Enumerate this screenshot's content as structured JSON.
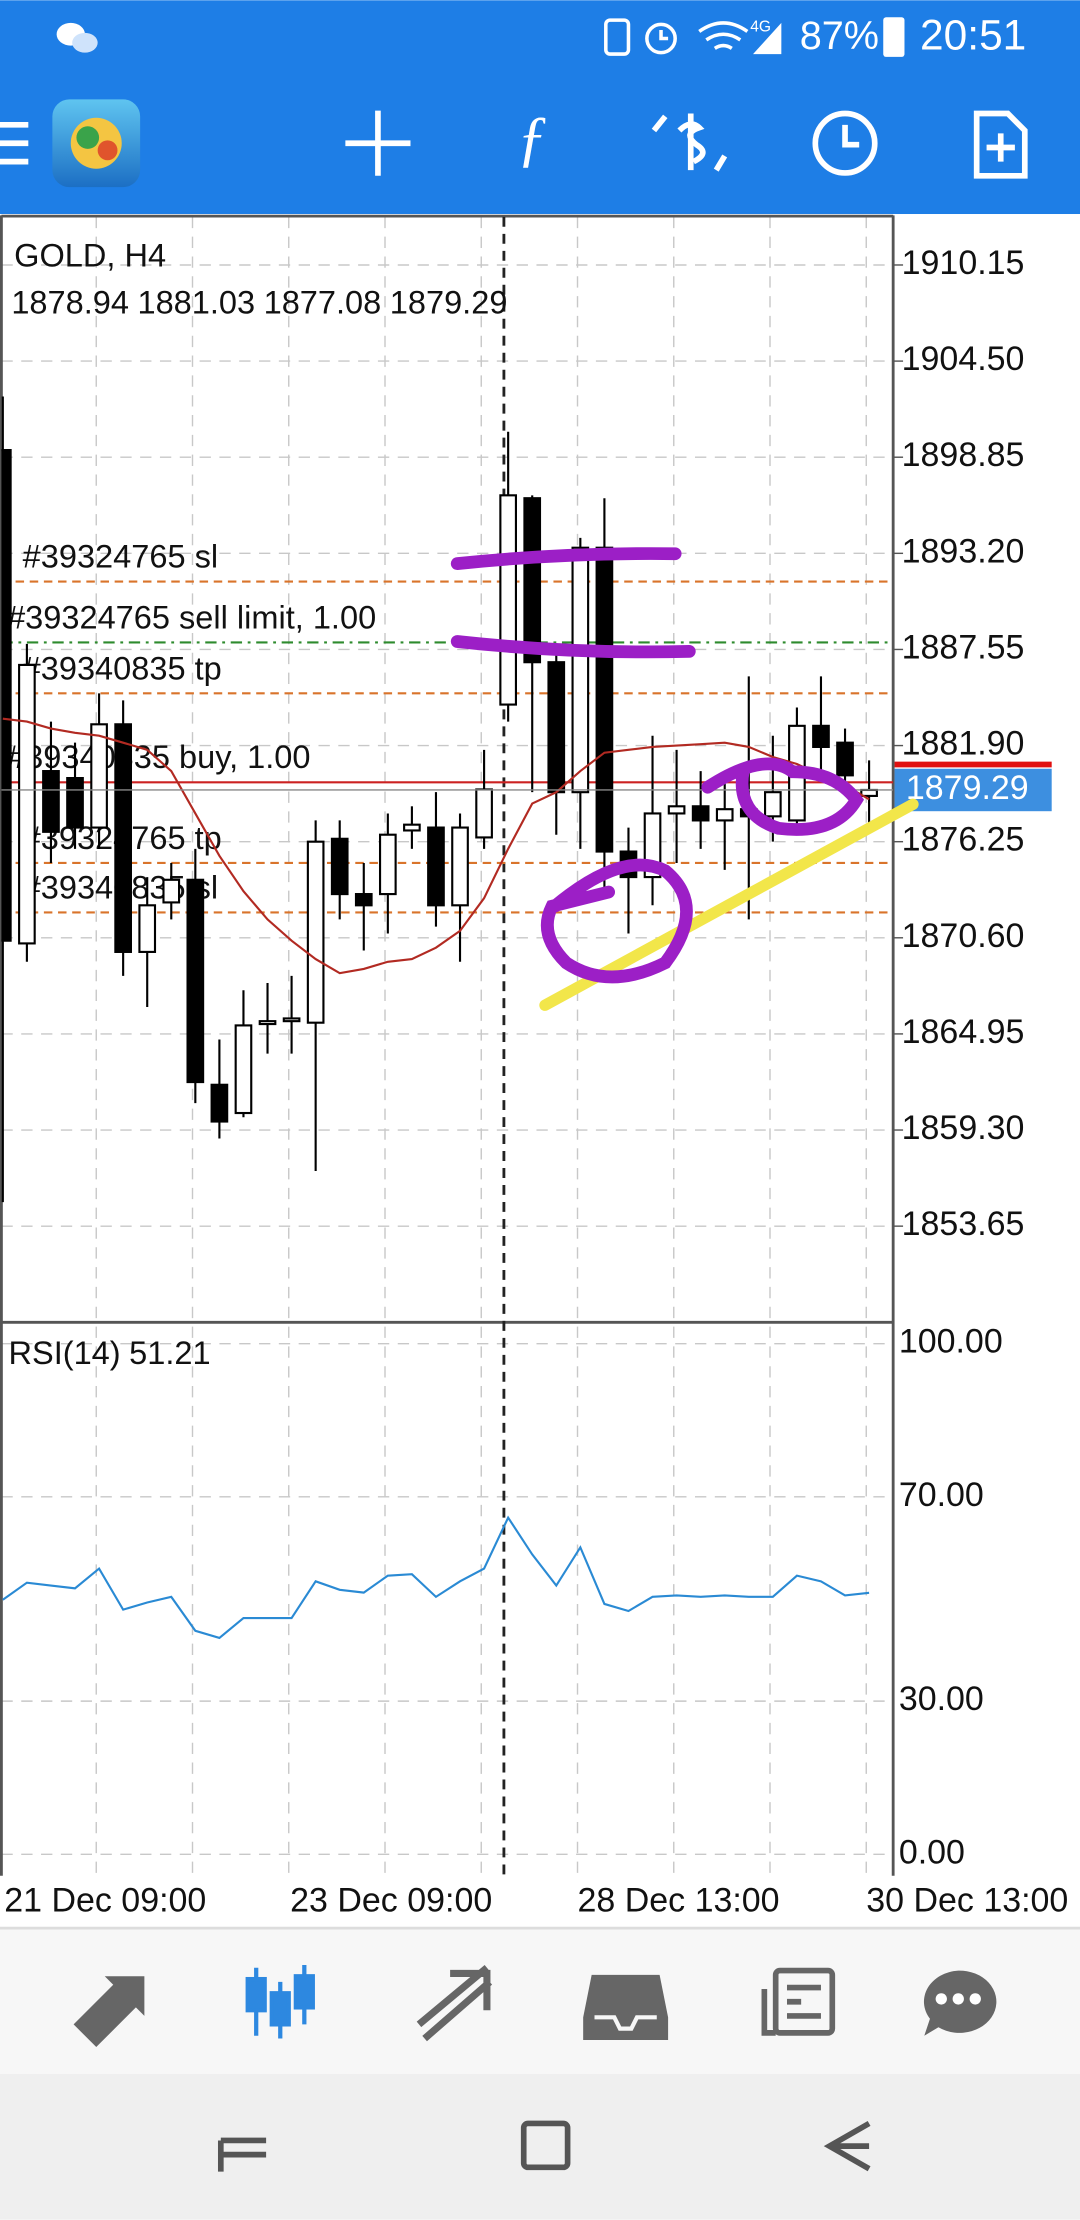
{
  "status_bar": {
    "network": "4G",
    "battery": "87%",
    "time": "20:51"
  },
  "chart": {
    "symbol": "GOLD, H4",
    "ylim": [
      1848.08,
      1912.98
    ],
    "yticks": [
      1910.15,
      {
        "value": 1904.5,
        "label": "1904.50"
      },
      1898.85,
      {
        "value": 1893.2,
        "label": "1893.20"
      },
      1887.55,
      {
        "value": 1881.9,
        "label": "1881.90"
      },
      1876.25,
      {
        "value": 1870.6,
        "label": "1870.60"
      },
      1864.95,
      {
        "value": 1859.3,
        "label": "1859.30"
      },
      1853.65
    ],
    "candles": [
      {
        "open": 1899.27,
        "high": 1902.42,
        "low": 1855.06,
        "close": 1870.43
      },
      {
        "open": 1870.27,
        "high": 1887.88,
        "low": 1869.19,
        "close": 1886.64
      },
      {
        "open": 1880.4,
        "high": 1883.31,
        "low": 1875.0,
        "close": 1876.83
      },
      {
        "open": 1879.99,
        "high": 1882.07,
        "low": 1875.83,
        "close": 1877.08
      },
      {
        "open": 1877.08,
        "high": 1884.97,
        "low": 1875.83,
        "close": 1883.15
      },
      {
        "open": 1883.15,
        "high": 1884.56,
        "low": 1868.36,
        "close": 1869.77
      },
      {
        "open": 1869.77,
        "high": 1874.17,
        "low": 1866.53,
        "close": 1872.51
      },
      {
        "open": 1872.68,
        "high": 1875.0,
        "low": 1871.68,
        "close": 1874.01
      },
      {
        "open": 1874.01,
        "high": 1875.83,
        "low": 1860.88,
        "close": 1862.12
      },
      {
        "open": 1861.96,
        "high": 1864.62,
        "low": 1858.8,
        "close": 1859.8
      },
      {
        "open": 1860.3,
        "high": 1867.52,
        "low": 1860.05,
        "close": 1865.45
      },
      {
        "open": 1865.53,
        "high": 1867.94,
        "low": 1863.79,
        "close": 1865.7
      },
      {
        "open": 1865.7,
        "high": 1868.36,
        "low": 1863.79,
        "close": 1865.86
      },
      {
        "open": 1865.61,
        "high": 1877.5,
        "low": 1856.89,
        "close": 1876.25
      },
      {
        "open": 1876.42,
        "high": 1877.5,
        "low": 1871.68,
        "close": 1873.17
      },
      {
        "open": 1873.17,
        "high": 1875.0,
        "low": 1869.85,
        "close": 1872.51
      },
      {
        "open": 1873.17,
        "high": 1877.91,
        "low": 1870.85,
        "close": 1876.66
      },
      {
        "open": 1876.91,
        "high": 1878.33,
        "low": 1875.83,
        "close": 1877.25
      },
      {
        "open": 1877.08,
        "high": 1879.16,
        "low": 1871.26,
        "close": 1872.51
      },
      {
        "open": 1872.51,
        "high": 1877.91,
        "low": 1869.19,
        "close": 1877.08
      },
      {
        "open": 1876.5,
        "high": 1881.65,
        "low": 1875.83,
        "close": 1879.32
      },
      {
        "open": 1884.31,
        "high": 1900.35,
        "low": 1883.31,
        "close": 1896.61
      },
      {
        "open": 1896.44,
        "high": 1896.61,
        "low": 1879.16,
        "close": 1886.8
      },
      {
        "open": 1886.8,
        "high": 1887.88,
        "low": 1876.66,
        "close": 1879.16
      },
      {
        "open": 1879.16,
        "high": 1894.11,
        "low": 1875.83,
        "close": 1893.53
      },
      {
        "open": 1893.53,
        "high": 1896.44,
        "low": 1873.34,
        "close": 1875.67
      },
      {
        "open": 1875.67,
        "high": 1877.08,
        "low": 1870.85,
        "close": 1874.17
      },
      {
        "open": 1874.17,
        "high": 1882.48,
        "low": 1872.51,
        "close": 1877.91
      },
      {
        "open": 1877.91,
        "high": 1881.65,
        "low": 1875.0,
        "close": 1878.33
      },
      {
        "open": 1878.33,
        "high": 1880.4,
        "low": 1875.83,
        "close": 1877.5
      },
      {
        "open": 1877.5,
        "high": 1880.15,
        "low": 1874.59,
        "close": 1878.16
      },
      {
        "open": 1878.16,
        "high": 1885.97,
        "low": 1871.68,
        "close": 1877.74
      },
      {
        "open": 1877.74,
        "high": 1882.48,
        "low": 1876.25,
        "close": 1879.16
      },
      {
        "open": 1877.5,
        "high": 1884.14,
        "low": 1876.66,
        "close": 1883.06
      },
      {
        "open": 1883.06,
        "high": 1885.97,
        "low": 1880.15,
        "close": 1881.82
      },
      {
        "open": 1882.07,
        "high": 1882.9,
        "low": 1879.16,
        "close": 1880.15
      },
      {
        "open": 1878.94,
        "high": 1881.03,
        "low": 1877.08,
        "close": 1879.29
      }
    ],
    "ma": {
      "color": "#b22a22",
      "values": [
        1883.48,
        1883.31,
        1882.9,
        1882.65,
        1882.48,
        1882.07,
        1881.65,
        1880.4,
        1877.91,
        1875.42,
        1873.34,
        1871.68,
        1870.43,
        1869.35,
        1868.52,
        1868.77,
        1869.19,
        1869.35,
        1870.02,
        1871.01,
        1872.93,
        1875.83,
        1878.49,
        1879.16,
        1880.4,
        1881.48,
        1881.65,
        1881.82,
        1881.9,
        1881.98,
        1882.07,
        1881.82,
        1881.23,
        1880.82,
        1880.15,
        1879.57,
        1878.74
      ]
    },
    "orders": [
      {
        "label": "#39324765 sl",
        "price": 1891.54,
        "color": "#d9742b"
      },
      {
        "label": "#39324765 sell limit, 1.00",
        "price": 1887.96,
        "color": "#2e8b2e"
      },
      {
        "label": "#39340835 tp",
        "price": 1884.97,
        "color": "#d9742b"
      },
      {
        "label": "#39340835 buy, 1.00",
        "price": 1879.74,
        "color": "#cc2222"
      },
      {
        "label": "#39324765 tp",
        "price": 1875.0,
        "color": "#d9742b"
      },
      {
        "label": "#39340835 sl",
        "price": 1872.09,
        "color": "#d9742b"
      }
    ]
  },
  "rsi": {
    "label": "RSI(14)",
    "color": "#2a8ad4",
    "ylim": [
      -4.2,
      103.9
    ],
    "yticks": [
      {
        "value": 100,
        "label": "100.00"
      },
      {
        "value": 70,
        "label": "70.00"
      },
      {
        "value": 30,
        "label": "30.00"
      },
      {
        "value": 0,
        "label": "0.00"
      }
    ],
    "values": [
      49.86,
      53.19,
      52.63,
      52.08,
      55.96,
      47.92,
      49.31,
      50.42,
      43.77,
      42.38,
      46.26,
      46.26,
      46.26,
      53.46,
      51.8,
      51.25,
      54.57,
      54.85,
      50.42,
      53.46,
      55.96,
      65.93,
      58.73,
      52.63,
      60.11,
      49.03,
      47.65,
      50.42,
      50.69,
      50.42,
      50.69,
      50.42,
      50.42,
      54.57,
      53.46,
      50.69,
      51.21
    ]
  },
  "time_labels": [
    "21 Dec 09:00",
    "23 Dec 09:00",
    "28 Dec 13:00",
    "30 Dec 13:00"
  ]
}
